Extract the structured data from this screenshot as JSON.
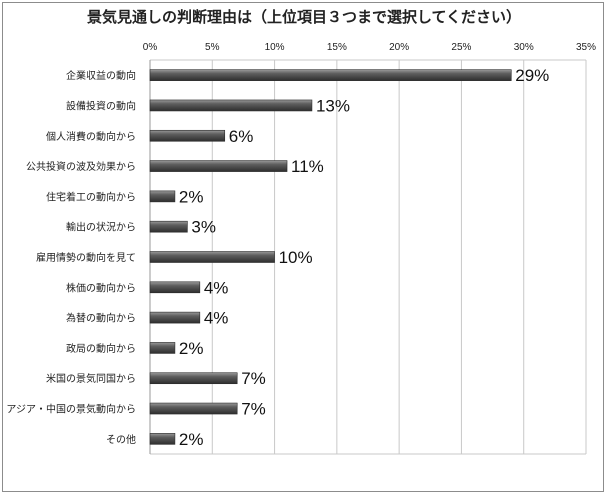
{
  "title": "景気見通しの判断理由は（上位項目３つまで選択してください）",
  "chart_data": {
    "type": "bar",
    "orientation": "horizontal",
    "title": "景気見通しの判断理由は（上位項目３つまで選択してください）",
    "xlabel": "",
    "ylabel": "",
    "xlim": [
      0,
      35
    ],
    "x_ticks": [
      "0%",
      "5%",
      "10%",
      "15%",
      "20%",
      "25%",
      "30%",
      "35%"
    ],
    "grid": "vertical gridlines on",
    "legend": "none",
    "bar_color": "#4d4d4d",
    "categories": [
      "企業収益の動向",
      "設備投資の動向",
      "個人消費の動向から",
      "公共投資の波及効果から",
      "住宅着工の動向から",
      "輸出の状況から",
      "雇用情勢の動向を見て",
      "株価の動向から",
      "為替の動向から",
      "政局の動向から",
      "米国の景気同国から",
      "アジア・中国の景気動向から",
      "その他"
    ],
    "values": [
      29,
      13,
      6,
      11,
      2,
      3,
      10,
      4,
      4,
      2,
      7,
      7,
      2
    ],
    "data_labels": [
      "29%",
      "13%",
      "6%",
      "11%",
      "2%",
      "3%",
      "10%",
      "4%",
      "4%",
      "2%",
      "7%",
      "7%",
      "2%"
    ]
  }
}
